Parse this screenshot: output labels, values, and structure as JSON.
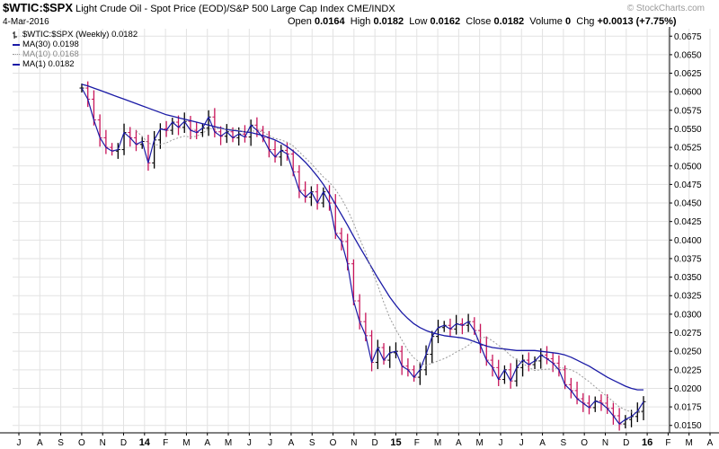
{
  "header": {
    "ticker": "$WTIC:$SPX",
    "description": "Light Crude Oil - Spot Price (EOD)/S&P 500 Large Cap Index CME/INDX",
    "date": "4-Mar-2016",
    "copyright": "© StockCharts.com",
    "stats": {
      "open_label": "Open",
      "open": "0.0164",
      "high_label": "High",
      "high": "0.0182",
      "low_label": "Low",
      "low": "0.0162",
      "close_label": "Close",
      "close": "0.0182",
      "volume_label": "Volume",
      "volume": "0",
      "chg_label": "Chg",
      "chg": "+0.0013 (+7.75%)"
    }
  },
  "legend": {
    "price": "$WTIC:$SPX (Weekly) 0.0182",
    "ma30": "MA(30) 0.0198",
    "ma10": "MA(10) 0.0168",
    "ma1": "MA(1) 0.0182"
  },
  "colors": {
    "ma30": "#1a1aa6",
    "ma10": "#9a9a9a",
    "ma1": "#1a1aa6",
    "up_bar": "#000000",
    "down_bar": "#c8155a",
    "grid": "#e2e2e2",
    "axis": "#000000"
  },
  "chart_data": {
    "type": "line",
    "title": "$WTIC:$SPX",
    "xlabel": "",
    "ylabel": "",
    "ylim": [
      0.014,
      0.0685
    ],
    "y_ticks": [
      "0.0675",
      "0.0650",
      "0.0625",
      "0.0600",
      "0.0575",
      "0.0550",
      "0.0525",
      "0.0500",
      "0.0475",
      "0.0450",
      "0.0425",
      "0.0400",
      "0.0375",
      "0.0350",
      "0.0325",
      "0.0300",
      "0.0275",
      "0.0250",
      "0.0225",
      "0.0200",
      "0.0175",
      "0.0150"
    ],
    "x_ticks": [
      "J",
      "A",
      "S",
      "O",
      "N",
      "D",
      "14",
      "F",
      "M",
      "A",
      "M",
      "J",
      "J",
      "A",
      "S",
      "O",
      "N",
      "D",
      "15",
      "F",
      "M",
      "A",
      "M",
      "J",
      "J",
      "A",
      "S",
      "O",
      "N",
      "D",
      "16",
      "F",
      "M",
      "A"
    ],
    "x_ticks_bold": [
      "14",
      "15",
      "16"
    ],
    "grid": true,
    "series": [
      {
        "name": "MA(1)",
        "values": [
          0.0605,
          0.059,
          0.0562,
          0.0538,
          0.0525,
          0.052,
          0.0522,
          0.0545,
          0.0538,
          0.0529,
          0.0533,
          0.0504,
          0.0535,
          0.055,
          0.0548,
          0.0559,
          0.0552,
          0.056,
          0.0548,
          0.0545,
          0.0551,
          0.0566,
          0.0546,
          0.054,
          0.0546,
          0.0538,
          0.0543,
          0.0539,
          0.0555,
          0.0548,
          0.0538,
          0.0522,
          0.0512,
          0.0521,
          0.0516,
          0.0492,
          0.0467,
          0.0458,
          0.0465,
          0.045,
          0.0465,
          0.045,
          0.0409,
          0.0398,
          0.0368,
          0.0318,
          0.029,
          0.0271,
          0.0235,
          0.0255,
          0.0238,
          0.0248,
          0.025,
          0.023,
          0.0225,
          0.0215,
          0.0225,
          0.0246,
          0.027,
          0.0282,
          0.0285,
          0.028,
          0.0287,
          0.0285,
          0.029,
          0.0278,
          0.0258,
          0.0238,
          0.0228,
          0.0212,
          0.0225,
          0.021,
          0.0228,
          0.0238,
          0.0232,
          0.0237,
          0.0245,
          0.024,
          0.0234,
          0.0225,
          0.0205,
          0.0197,
          0.0186,
          0.018,
          0.0174,
          0.0183,
          0.018,
          0.0173,
          0.0163,
          0.0152,
          0.0158,
          0.0162,
          0.0169,
          0.0182
        ],
        "style": "solid"
      },
      {
        "name": "MA(10)",
        "values": [
          null,
          null,
          null,
          null,
          null,
          null,
          null,
          null,
          null,
          0.0547,
          0.054,
          0.0531,
          0.0528,
          0.0529,
          0.0531,
          0.0535,
          0.0538,
          0.054,
          0.0539,
          0.054,
          0.0544,
          0.055,
          0.0551,
          0.055,
          0.055,
          0.0549,
          0.0548,
          0.0546,
          0.0547,
          0.0547,
          0.0546,
          0.0541,
          0.0537,
          0.0535,
          0.0532,
          0.0527,
          0.0519,
          0.0511,
          0.0503,
          0.0494,
          0.0485,
          0.0478,
          0.0468,
          0.0456,
          0.0441,
          0.0423,
          0.0402,
          0.0383,
          0.036,
          0.0339,
          0.0316,
          0.0295,
          0.0279,
          0.0265,
          0.0251,
          0.0241,
          0.0235,
          0.0231,
          0.0234,
          0.0237,
          0.024,
          0.0244,
          0.0249,
          0.0253,
          0.0258,
          0.0265,
          0.0268,
          0.0269,
          0.0264,
          0.0258,
          0.0252,
          0.0244,
          0.0239,
          0.0234,
          0.0228,
          0.0224,
          0.0225,
          0.0226,
          0.0226,
          0.0228,
          0.0227,
          0.0225,
          0.0221,
          0.0215,
          0.0209,
          0.0202,
          0.0195,
          0.0189,
          0.0182,
          0.0175,
          0.0171,
          0.0168,
          0.0167,
          0.0168
        ],
        "style": "dotted"
      },
      {
        "name": "MA(30)",
        "values": [
          0.061,
          0.0608,
          0.0605,
          0.0602,
          0.0599,
          0.0596,
          0.0593,
          0.059,
          0.0587,
          0.0584,
          0.0581,
          0.0578,
          0.0575,
          0.0572,
          0.0569,
          0.0567,
          0.0565,
          0.0563,
          0.0561,
          0.0559,
          0.0557,
          0.0555,
          0.0553,
          0.0551,
          0.0549,
          0.0548,
          0.0547,
          0.0546,
          0.0545,
          0.0543,
          0.0541,
          0.0538,
          0.0535,
          0.0531,
          0.0526,
          0.052,
          0.0513,
          0.0505,
          0.0496,
          0.0486,
          0.0475,
          0.0462,
          0.0448,
          0.0434,
          0.042,
          0.0405,
          0.0391,
          0.0377,
          0.0363,
          0.0349,
          0.0336,
          0.0323,
          0.0312,
          0.0302,
          0.0294,
          0.0287,
          0.0282,
          0.0278,
          0.0275,
          0.0273,
          0.0271,
          0.027,
          0.0269,
          0.0268,
          0.0266,
          0.0263,
          0.026,
          0.0257,
          0.0255,
          0.0254,
          0.0253,
          0.0252,
          0.0251,
          0.0251,
          0.0251,
          0.0251,
          0.025,
          0.0249,
          0.0248,
          0.0247,
          0.0245,
          0.0242,
          0.0238,
          0.0234,
          0.023,
          0.0225,
          0.022,
          0.0215,
          0.0211,
          0.0207,
          0.0203,
          0.02,
          0.0198,
          0.0198
        ],
        "style": "solid"
      }
    ]
  }
}
